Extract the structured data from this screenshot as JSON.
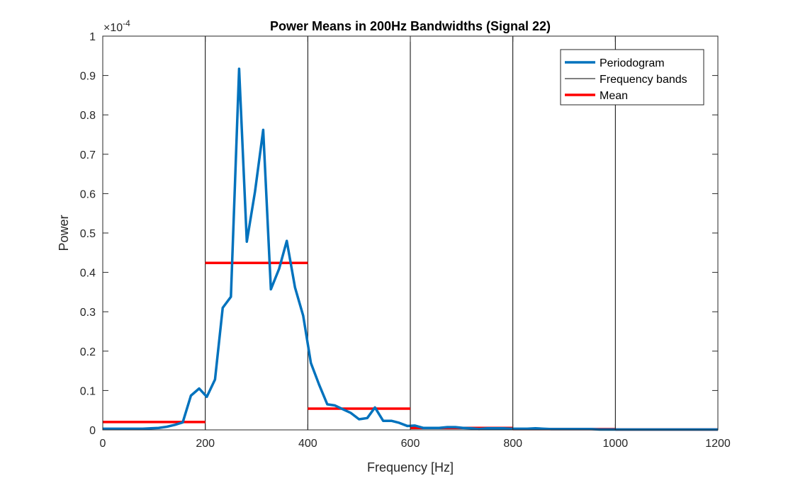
{
  "chart_data": {
    "type": "line",
    "title": "Power Means in 200Hz Bandwidths (Signal 22)",
    "xlabel": "Frequency [Hz]",
    "ylabel": "Power",
    "y_exponent_label": "×10",
    "y_exponent_power": "-4",
    "xlim": [
      0,
      1200
    ],
    "ylim": [
      0,
      1
    ],
    "y_scale_note": "values in units of 1e-4",
    "x_ticks": [
      "0",
      "200",
      "400",
      "600",
      "800",
      "1000",
      "1200"
    ],
    "y_ticks": [
      "0",
      "0.1",
      "0.2",
      "0.3",
      "0.4",
      "0.5",
      "0.6",
      "0.7",
      "0.8",
      "0.9",
      "1"
    ],
    "x_tick_values": [
      0,
      200,
      400,
      600,
      800,
      1000,
      1200
    ],
    "y_tick_values": [
      0,
      0.1,
      0.2,
      0.3,
      0.4,
      0.5,
      0.6,
      0.7,
      0.8,
      0.9,
      1
    ],
    "grid": false,
    "legend_position": "top-right",
    "series": [
      {
        "name": "Periodogram",
        "color": "#0072BD",
        "x": [
          0,
          16,
          31,
          47,
          63,
          78,
          94,
          109,
          125,
          141,
          156,
          172,
          188,
          203,
          219,
          234,
          250,
          266,
          281,
          297,
          313,
          328,
          344,
          359,
          375,
          391,
          406,
          422,
          438,
          453,
          469,
          484,
          500,
          516,
          531,
          547,
          563,
          578,
          594,
          609,
          625,
          641,
          656,
          672,
          688,
          703,
          719,
          734,
          750,
          766,
          781,
          797,
          813,
          828,
          844,
          859,
          875,
          891,
          906,
          922,
          938,
          953,
          969,
          984,
          1000,
          1016,
          1031,
          1047,
          1063,
          1078,
          1094,
          1109,
          1125,
          1141,
          1156,
          1172,
          1188,
          1200
        ],
        "y": [
          0.003,
          0.003,
          0.003,
          0.003,
          0.003,
          0.003,
          0.004,
          0.005,
          0.008,
          0.013,
          0.019,
          0.087,
          0.105,
          0.084,
          0.128,
          0.31,
          0.338,
          0.917,
          0.478,
          0.605,
          0.762,
          0.357,
          0.409,
          0.48,
          0.362,
          0.29,
          0.17,
          0.115,
          0.065,
          0.062,
          0.052,
          0.043,
          0.027,
          0.03,
          0.057,
          0.023,
          0.023,
          0.018,
          0.01,
          0.011,
          0.005,
          0.005,
          0.005,
          0.007,
          0.007,
          0.005,
          0.004,
          0.002,
          0.004,
          0.004,
          0.004,
          0.003,
          0.003,
          0.003,
          0.004,
          0.003,
          0.002,
          0.002,
          0.002,
          0.002,
          0.002,
          0.002,
          0.001,
          0.001,
          0.001,
          0.001,
          0.001,
          0.001,
          0.001,
          0.001,
          0.001,
          0.001,
          0.001,
          0.001,
          0.001,
          0.001,
          0.001,
          0.001
        ]
      },
      {
        "name": "Frequency bands",
        "color": "#000000",
        "x_positions": [
          200,
          400,
          600,
          800,
          1000
        ]
      },
      {
        "name": "Mean",
        "color": "#FF0000",
        "segments": [
          {
            "x": [
              0,
              200
            ],
            "y": 0.02
          },
          {
            "x": [
              200,
              400
            ],
            "y": 0.424
          },
          {
            "x": [
              400,
              600
            ],
            "y": 0.054
          },
          {
            "x": [
              600,
              800
            ],
            "y": 0.005
          },
          {
            "x": [
              800,
              1000
            ],
            "y": 0.002
          },
          {
            "x": [
              1000,
              1200
            ],
            "y": 0.001
          }
        ]
      }
    ]
  }
}
